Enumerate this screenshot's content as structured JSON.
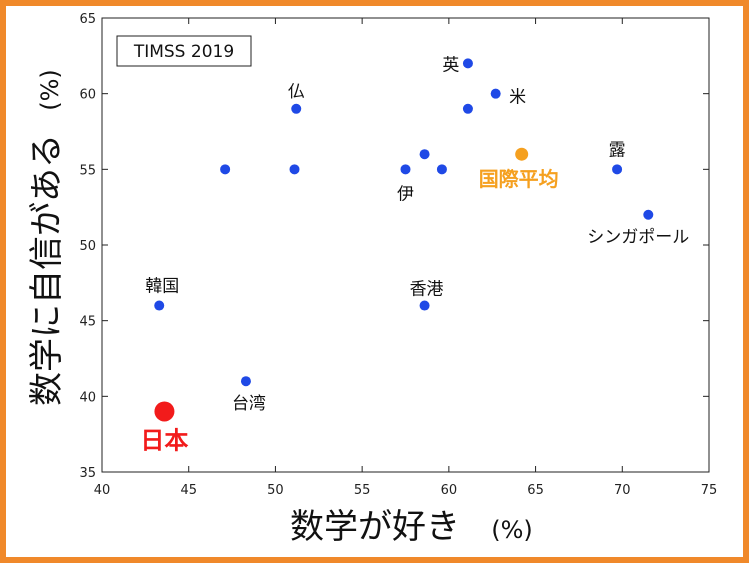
{
  "chart_data": {
    "type": "scatter",
    "title": "TIMSS 2019",
    "xlabel": "数学が好き",
    "xunit": "(%)",
    "ylabel": "数学に自信がある",
    "yunit": "(%)",
    "xlim": [
      40,
      75
    ],
    "ylim": [
      35,
      65
    ],
    "xticks": [
      40,
      45,
      50,
      55,
      60,
      65,
      70,
      75
    ],
    "yticks": [
      35,
      40,
      45,
      50,
      55,
      60,
      65
    ],
    "grid": false,
    "points": [
      {
        "x": 61.1,
        "y": 62,
        "label": "英"
      },
      {
        "x": 62.7,
        "y": 60,
        "label": "米"
      },
      {
        "x": 61.1,
        "y": 59,
        "label": ""
      },
      {
        "x": 51.2,
        "y": 59,
        "label": "仏"
      },
      {
        "x": 47.1,
        "y": 55,
        "label": ""
      },
      {
        "x": 51.1,
        "y": 55,
        "label": ""
      },
      {
        "x": 57.5,
        "y": 55,
        "label": "伊"
      },
      {
        "x": 58.6,
        "y": 56,
        "label": ""
      },
      {
        "x": 59.6,
        "y": 55,
        "label": ""
      },
      {
        "x": 69.7,
        "y": 55,
        "label": "露"
      },
      {
        "x": 71.5,
        "y": 52,
        "label": "シンガポール"
      },
      {
        "x": 43.3,
        "y": 46,
        "label": "韓国"
      },
      {
        "x": 58.6,
        "y": 46,
        "label": "香港"
      },
      {
        "x": 48.3,
        "y": 41,
        "label": "台湾"
      },
      {
        "x": 64.2,
        "y": 56,
        "label": "国際平均",
        "highlight": "average"
      },
      {
        "x": 43.6,
        "y": 39,
        "label": "日本",
        "highlight": "japan"
      }
    ]
  },
  "colors": {
    "frame": "#f0892a",
    "point": "#1f49e6",
    "average": "#f5a01f",
    "japan": "#f21b1b"
  }
}
